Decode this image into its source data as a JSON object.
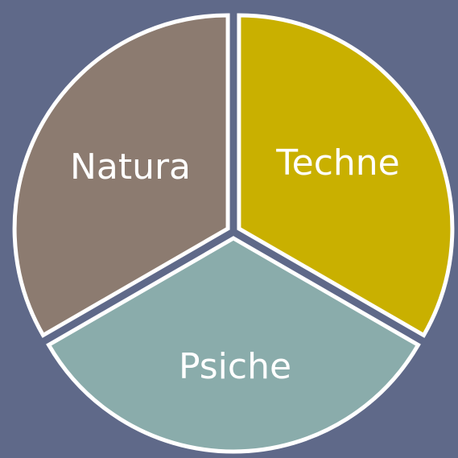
{
  "nodes": [
    {
      "label": "Natura"
    },
    {
      "label": "Techne"
    },
    {
      "label": "Psiche"
    }
  ]
}
